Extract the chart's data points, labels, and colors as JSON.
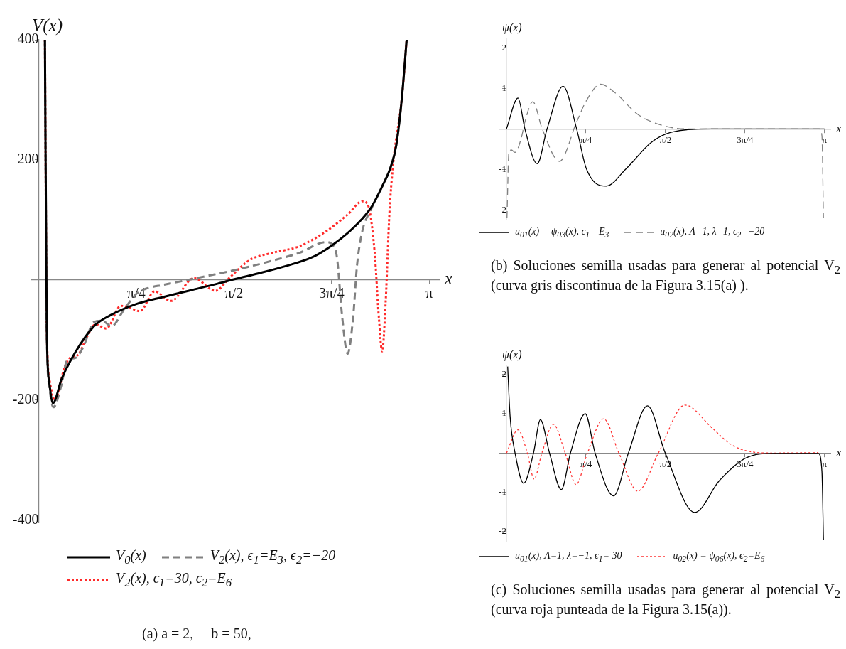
{
  "chart_data": [
    {
      "type": "line",
      "xlabel": "x",
      "ylabel": "V(x)",
      "xlim": [
        -0.06,
        3.22
      ],
      "ylim": [
        -404,
        400
      ],
      "xticks": [
        {
          "value": 0.7854,
          "label": "π/4"
        },
        {
          "value": 1.5708,
          "label": "π/2"
        },
        {
          "value": 2.3562,
          "label": "3π/4"
        },
        {
          "value": 3.1416,
          "label": "π"
        }
      ],
      "yticks": [
        -400,
        -200,
        200,
        400
      ],
      "legend": "bottom",
      "marker": "none",
      "series": [
        {
          "name": "V$_{0}$(x)",
          "color": "#000000",
          "line_style": "solid",
          "x": [
            0.05,
            0.065,
            0.087,
            0.115,
            0.184,
            0.293,
            0.445,
            0.575,
            0.786,
            1.009,
            1.226,
            1.443,
            1.569,
            1.769,
            1.986,
            2.203,
            2.355,
            2.485,
            2.594,
            2.681,
            2.768,
            2.833,
            2.876,
            2.92,
            2.96
          ],
          "values": [
            400,
            -85,
            -174,
            -205,
            -165,
            -121,
            -77,
            -59,
            -40,
            -28,
            -17,
            -6,
            1,
            11,
            23,
            38,
            57,
            78,
            100,
            123,
            158,
            189,
            224,
            300,
            400
          ]
        },
        {
          "name": "V$_{2}$(x), ϵ$_{1}$=E$_{3}$, ϵ$_{2}$=−20",
          "color": "#808080",
          "line_style": "dashed",
          "x": [
            0.05,
            0.065,
            0.087,
            0.119,
            0.184,
            0.228,
            0.293,
            0.358,
            0.445,
            0.51,
            0.586,
            0.684,
            0.786,
            0.857,
            1.009,
            1.27,
            1.569,
            1.878,
            2.095,
            2.312,
            2.366,
            2.399,
            2.442,
            2.485,
            2.529,
            2.561,
            2.605,
            2.67,
            2.768,
            2.833,
            2.876,
            2.92,
            2.96
          ],
          "values": [
            400,
            -85,
            -180,
            -212,
            -174,
            -134,
            -130,
            -112,
            -70,
            -68,
            -77,
            -50,
            -23,
            -15,
            -8,
            3,
            16,
            32,
            45,
            63,
            58,
            38,
            -63,
            -123,
            -63,
            25,
            83,
            116,
            158,
            189,
            224,
            300,
            400
          ]
        },
        {
          "name": "V$_{2}$(x), ϵ$_{1}$=30, ϵ$_{2}$=E$_{6}$",
          "color": "#ff2a2a",
          "line_style": "dotted",
          "x": [
            0.05,
            0.065,
            0.09,
            0.13,
            0.206,
            0.25,
            0.315,
            0.39,
            0.456,
            0.543,
            0.662,
            0.727,
            0.814,
            0.933,
            1.064,
            1.248,
            1.422,
            1.541,
            1.704,
            1.878,
            2.095,
            2.312,
            2.485,
            2.605,
            2.648,
            2.702,
            2.735,
            2.763,
            2.79,
            2.822,
            2.856,
            2.92,
            2.96
          ],
          "values": [
            400,
            -80,
            -170,
            -200,
            -147,
            -130,
            -125,
            -94,
            -74,
            -81,
            -43,
            -46,
            -52,
            -19,
            -35,
            3,
            -18,
            5,
            34,
            45,
            56,
            81,
            109,
            131,
            125,
            47,
            -59,
            -119,
            -41,
            114,
            202,
            300,
            400
          ]
        }
      ],
      "annotations": [
        "(a) a = 2,     b = 50,"
      ]
    },
    {
      "type": "line",
      "xlabel": "x",
      "ylabel": "ψ(x)",
      "xlim": [
        -0.066,
        3.2
      ],
      "ylim": [
        -2.24,
        2.24
      ],
      "xticks": [
        {
          "value": 0.7854,
          "label": "π/4"
        },
        {
          "value": 1.5708,
          "label": "π/2"
        },
        {
          "value": 2.3562,
          "label": "3π/4"
        },
        {
          "value": 3.1416,
          "label": "π"
        }
      ],
      "yticks": [
        -2,
        -1,
        1,
        2
      ],
      "legend": "bottom",
      "marker": "none",
      "series": [
        {
          "name": "u$_{01}$(x) = ψ$_{03}$(x), ϵ$_{1}$= E$_{3}$",
          "color": "#000000",
          "line_style": "solid",
          "x": [
            0,
            0.114,
            0.182,
            0.304,
            0.401,
            0.559,
            0.693,
            0.79,
            0.985,
            1.179,
            1.422,
            1.58,
            1.787,
            2.03,
            3.14
          ],
          "values": [
            0,
            0.76,
            0,
            -0.86,
            0,
            1.05,
            0,
            -0.99,
            -1.41,
            -0.99,
            -0.35,
            -0.12,
            -0.02,
            0,
            0
          ]
        },
        {
          "name": "u$_{02}$(x), Λ=1, λ=1, ϵ$_{2}$=−20",
          "color": "#808080",
          "line_style": "dashed",
          "x": [
            0.005,
            0.024,
            0.049,
            0.085,
            0.146,
            0.182,
            0.26,
            0.353,
            0.523,
            0.693,
            0.79,
            0.929,
            1.082,
            1.3,
            1.58,
            1.787,
            3.09,
            3.115,
            3.13
          ],
          "values": [
            -2.2,
            -0.58,
            -0.52,
            -0.58,
            -0.23,
            0.17,
            0.67,
            0,
            -0.8,
            0.17,
            0.7,
            1.1,
            0.87,
            0.35,
            0.06,
            0,
            0,
            -0.17,
            -2.2
          ]
        }
      ],
      "annotations": [
        "(b) Soluciones semilla usadas para generar al potencial V$_{2}$ (curva gris discontinua de la Figura 3.15(a) )."
      ]
    },
    {
      "type": "line",
      "xlabel": "x",
      "ylabel": "ψ(x)",
      "xlim": [
        -0.066,
        3.2
      ],
      "ylim": [
        -2.24,
        2.24
      ],
      "xticks": [
        {
          "value": 0.7854,
          "label": "π/4"
        },
        {
          "value": 1.5708,
          "label": "π/2"
        },
        {
          "value": 2.3562,
          "label": "3π/4"
        },
        {
          "value": 3.1416,
          "label": "π"
        }
      ],
      "yticks": [
        -2,
        -1,
        1,
        2
      ],
      "legend": "bottom",
      "marker": "none",
      "series": [
        {
          "name": "u$_{01}$(x), Λ=1, λ=−1, ϵ$_{1}$= 30",
          "color": "#000000",
          "line_style": "solid",
          "x": [
            0.012,
            0.036,
            0.085,
            0.17,
            0.267,
            0.335,
            0.425,
            0.542,
            0.632,
            0.778,
            0.875,
            1.058,
            1.204,
            1.393,
            1.568,
            1.86,
            2.103,
            2.37,
            2.638,
            3.08,
            3.115,
            3.13
          ],
          "values": [
            2.2,
            0.93,
            0,
            -0.77,
            0,
            0.85,
            0,
            -0.93,
            0,
            1.0,
            0,
            -1.09,
            0,
            1.2,
            0,
            -1.51,
            -0.7,
            -0.12,
            -0.01,
            -0.01,
            -0.47,
            -2.2
          ]
        },
        {
          "name": "u$_{02}$(x) = ψ$_{06}$(x), ϵ$_{2}$=E$_{6}$",
          "color": "#ff3333",
          "line_style": "dotted",
          "x": [
            0,
            0.114,
            0.206,
            0.273,
            0.35,
            0.464,
            0.58,
            0.688,
            0.8,
            0.96,
            1.11,
            1.297,
            1.5,
            1.763,
            2.03,
            2.21,
            2.38,
            2.638,
            3.08
          ],
          "values": [
            0,
            0.59,
            0,
            -0.66,
            0,
            0.73,
            0,
            -0.8,
            0,
            0.87,
            0,
            -0.97,
            0,
            1.22,
            0.64,
            0.23,
            0.05,
            0,
            0.01
          ]
        }
      ],
      "annotations": [
        "(c) Soluciones semilla usadas para generar al potencial V$_{2}$ (curva roja punteada de la Figura 3.15(a))."
      ]
    }
  ]
}
